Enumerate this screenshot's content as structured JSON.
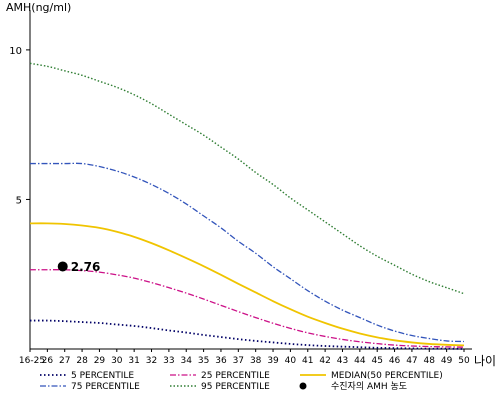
{
  "chart_data": {
    "type": "line",
    "ylabel": "AMH(ng/ml)",
    "xlabel": "나이",
    "ylim": [
      0,
      11.2
    ],
    "yticks": [
      5,
      10
    ],
    "categories": [
      "16-25",
      "26",
      "27",
      "28",
      "29",
      "30",
      "31",
      "32",
      "33",
      "34",
      "35",
      "36",
      "37",
      "38",
      "39",
      "40",
      "41",
      "42",
      "43",
      "44",
      "45",
      "46",
      "47",
      "48",
      "49",
      "50"
    ],
    "series": [
      {
        "name": "5 PERCENTILE",
        "color": "#000066",
        "dash": "1.5,2.5",
        "width": 1.8,
        "values": [
          0.95,
          0.95,
          0.93,
          0.9,
          0.87,
          0.82,
          0.77,
          0.7,
          0.62,
          0.55,
          0.47,
          0.4,
          0.33,
          0.27,
          0.22,
          0.17,
          0.13,
          0.1,
          0.08,
          0.06,
          0.04,
          0.03,
          0.02,
          0.01,
          0.01,
          0.0
        ]
      },
      {
        "name": "75 PERCENTILE",
        "color": "#3355bb",
        "dash": "6,2,1.5,2",
        "width": 1.3,
        "values": [
          6.2,
          6.2,
          6.2,
          6.2,
          6.1,
          5.95,
          5.75,
          5.5,
          5.2,
          4.85,
          4.45,
          4.05,
          3.6,
          3.2,
          2.75,
          2.35,
          1.95,
          1.6,
          1.3,
          1.05,
          0.8,
          0.6,
          0.45,
          0.35,
          0.27,
          0.25
        ]
      },
      {
        "name": "25 PERCENTILE",
        "color": "#cc1188",
        "dash": "6,2,1.5,2",
        "width": 1.3,
        "values": [
          2.65,
          2.65,
          2.65,
          2.62,
          2.57,
          2.48,
          2.37,
          2.22,
          2.05,
          1.87,
          1.67,
          1.46,
          1.25,
          1.05,
          0.86,
          0.69,
          0.54,
          0.42,
          0.32,
          0.24,
          0.18,
          0.13,
          0.1,
          0.08,
          0.07,
          0.06
        ]
      },
      {
        "name": "95 PERCENTILE",
        "color": "#2e7d32",
        "dash": "1.5,2",
        "width": 1.4,
        "values": [
          9.55,
          9.45,
          9.3,
          9.15,
          8.95,
          8.75,
          8.5,
          8.2,
          7.85,
          7.5,
          7.15,
          6.75,
          6.35,
          5.9,
          5.5,
          5.05,
          4.65,
          4.25,
          3.85,
          3.45,
          3.1,
          2.8,
          2.5,
          2.25,
          2.05,
          1.85
        ]
      },
      {
        "name": "MEDIAN(50 PERCENTILE)",
        "color": "#f0c400",
        "dash": "",
        "width": 1.8,
        "values": [
          4.2,
          4.2,
          4.18,
          4.13,
          4.05,
          3.92,
          3.75,
          3.54,
          3.3,
          3.04,
          2.77,
          2.48,
          2.18,
          1.89,
          1.6,
          1.33,
          1.08,
          0.87,
          0.68,
          0.52,
          0.39,
          0.29,
          0.22,
          0.17,
          0.14,
          0.12
        ]
      }
    ],
    "point": {
      "name": "수진자의 AMH 농도",
      "category": "27",
      "value": 2.76,
      "label": "2.76",
      "color": "#000000"
    },
    "legend_order": [
      "5 PERCENTILE",
      "25 PERCENTILE",
      "MEDIAN(50 PERCENTILE)",
      "75 PERCENTILE",
      "95 PERCENTILE",
      "수진자의 AMH 농도"
    ],
    "legend_placement": "bottom",
    "grid": false
  }
}
